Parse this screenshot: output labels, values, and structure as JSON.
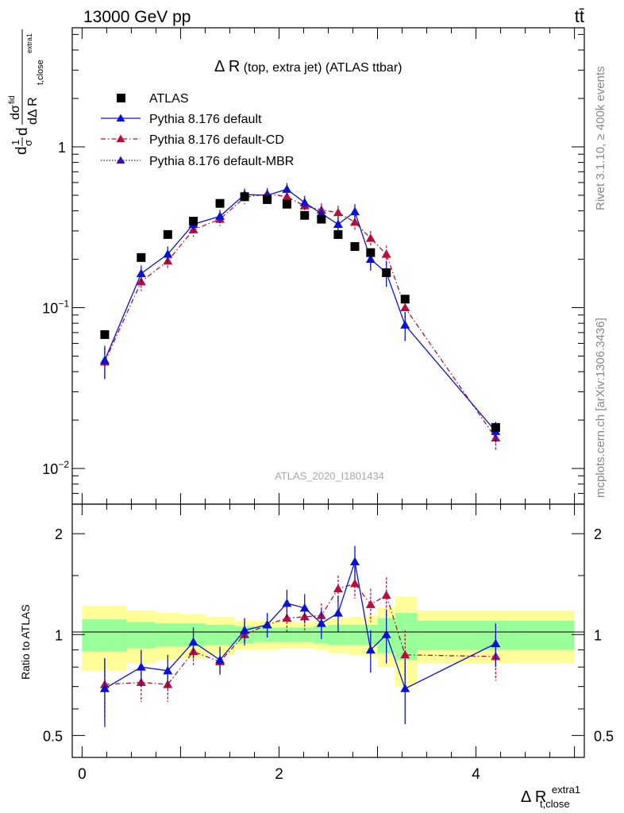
{
  "header": {
    "energy_label": "13000 GeV pp",
    "process_label": "tt̄"
  },
  "side_labels": {
    "rivet": "Rivet 3.1.10, ≥ 400k events",
    "mcplots": "mcplots.cern.ch [arXiv:1306.3436]"
  },
  "chart_data": [
    {
      "type": "scatter",
      "panel": "main",
      "title_main": "Δ R",
      "title_detail": " (top, extra jet) (ATLAS ttbar)",
      "watermark": "ATLAS_2020_I1801434",
      "ylabel_parts": {
        "d1": "d",
        "one": "1",
        "sigma": "σ",
        "d2": "d",
        "dsigma_num": "dσ",
        "fid": "fid",
        "den": "dΔ R",
        "sub": "t,close",
        "sup": "extra1"
      },
      "yscale": "log",
      "ylim": [
        0.006,
        5.5
      ],
      "xlim": [
        -0.1,
        5.1
      ],
      "ytick_labels": [
        {
          "value": 1,
          "base": "1",
          "exp": ""
        },
        {
          "value": 0.1,
          "base": "10",
          "exp": "−1"
        },
        {
          "value": 0.01,
          "base": "10",
          "exp": "−2"
        }
      ],
      "legend_position": "top-left",
      "series": [
        {
          "name": "ATLAS",
          "color": "#000000",
          "marker": "square",
          "x": [
            0.23,
            0.6,
            0.87,
            1.13,
            1.4,
            1.65,
            1.88,
            2.08,
            2.26,
            2.43,
            2.6,
            2.77,
            2.93,
            3.09,
            3.28,
            4.2
          ],
          "y": [
            0.068,
            0.205,
            0.285,
            0.345,
            0.445,
            0.49,
            0.47,
            0.44,
            0.375,
            0.355,
            0.285,
            0.24,
            0.22,
            0.165,
            0.113,
            0.018
          ],
          "yerr": [
            0.003,
            0.006,
            0.008,
            0.009,
            0.01,
            0.01,
            0.01,
            0.01,
            0.009,
            0.009,
            0.008,
            0.007,
            0.007,
            0.005,
            0.004,
            0.0008
          ]
        },
        {
          "name": "Pythia 8.176 default",
          "color": "#0a12d0",
          "line": "solid",
          "marker": "triangle",
          "x": [
            0.23,
            0.6,
            0.87,
            1.13,
            1.4,
            1.65,
            1.88,
            2.08,
            2.26,
            2.43,
            2.6,
            2.77,
            2.93,
            3.09,
            3.28,
            4.2
          ],
          "y": [
            0.047,
            0.163,
            0.215,
            0.33,
            0.37,
            0.505,
            0.5,
            0.545,
            0.45,
            0.385,
            0.33,
            0.395,
            0.2,
            0.165,
            0.078,
            0.017
          ],
          "yerr": [
            0.011,
            0.02,
            0.025,
            0.035,
            0.035,
            0.045,
            0.045,
            0.05,
            0.045,
            0.04,
            0.04,
            0.045,
            0.03,
            0.03,
            0.016,
            0.0025
          ]
        },
        {
          "name": "Pythia 8.176 default-CD",
          "color": "#b5103a",
          "line": "dashdot",
          "marker": "triangle",
          "x": [
            0.23,
            0.6,
            0.87,
            1.13,
            1.4,
            1.65,
            1.88,
            2.08,
            2.26,
            2.43,
            2.6,
            2.77,
            2.93,
            3.09,
            3.28,
            4.2
          ],
          "y": [
            0.046,
            0.145,
            0.195,
            0.305,
            0.355,
            0.485,
            0.51,
            0.49,
            0.43,
            0.405,
            0.39,
            0.34,
            0.27,
            0.215,
            0.1,
            0.0155
          ],
          "yerr": [
            0.01,
            0.018,
            0.022,
            0.03,
            0.033,
            0.045,
            0.045,
            0.045,
            0.04,
            0.04,
            0.04,
            0.035,
            0.03,
            0.028,
            0.018,
            0.0025
          ]
        },
        {
          "name": "Pythia 8.176 default-MBR",
          "color": "#3a0fb8",
          "line": "dotted",
          "marker": "triangle",
          "x": [],
          "y": []
        }
      ]
    },
    {
      "type": "scatter",
      "panel": "ratio",
      "ylabel": "Ratio to ATLAS",
      "xlabel_main": "Δ R",
      "xlabel_sub": "t,close",
      "xlabel_sup": "extra1",
      "yscale": "log",
      "ylim": [
        0.43,
        2.45
      ],
      "xlim": [
        -0.1,
        5.1
      ],
      "yticks": [
        0.5,
        1,
        2
      ],
      "ytick_labels": [
        "0.5",
        "1",
        "2"
      ],
      "xticks": [
        0,
        2,
        4
      ],
      "xtick_labels": [
        "0",
        "2",
        "4"
      ],
      "uncertainty_bands": {
        "bins": [
          0,
          0.45,
          0.75,
          1.0,
          1.25,
          1.55,
          1.75,
          2.0,
          2.15,
          2.35,
          2.5,
          2.7,
          2.85,
          3.0,
          3.18,
          3.4,
          5.0
        ],
        "yellow_half": [
          0.22,
          0.18,
          0.16,
          0.15,
          0.13,
          0.1,
          0.1,
          0.09,
          0.09,
          0.1,
          0.12,
          0.13,
          0.14,
          0.2,
          0.3,
          0.18
        ],
        "green_half": [
          0.11,
          0.09,
          0.08,
          0.08,
          0.07,
          0.06,
          0.05,
          0.05,
          0.05,
          0.06,
          0.07,
          0.07,
          0.07,
          0.12,
          0.16,
          0.1
        ]
      },
      "series": [
        {
          "name": "Pythia 8.176 default",
          "color": "#0a12d0",
          "line": "solid",
          "marker": "triangle",
          "x": [
            0.23,
            0.6,
            0.87,
            1.13,
            1.4,
            1.65,
            1.88,
            2.08,
            2.26,
            2.43,
            2.6,
            2.77,
            2.93,
            3.09,
            3.28,
            4.2
          ],
          "y": [
            0.69,
            0.8,
            0.78,
            0.95,
            0.84,
            1.03,
            1.07,
            1.24,
            1.2,
            1.08,
            1.16,
            1.65,
            0.9,
            1.0,
            0.69,
            0.94
          ],
          "yerr": [
            0.16,
            0.1,
            0.09,
            0.1,
            0.08,
            0.09,
            0.09,
            0.12,
            0.12,
            0.11,
            0.14,
            0.19,
            0.13,
            0.18,
            0.15,
            0.14
          ]
        },
        {
          "name": "Pythia 8.176 default-CD",
          "color": "#b5103a",
          "line": "dashdot",
          "marker": "triangle",
          "x": [
            0.23,
            0.6,
            0.87,
            1.13,
            1.4,
            1.65,
            1.88,
            2.08,
            2.26,
            2.43,
            2.6,
            2.77,
            2.93,
            3.09,
            3.28,
            4.2
          ],
          "y": [
            0.71,
            0.72,
            0.71,
            0.89,
            0.83,
            1.0,
            1.07,
            1.12,
            1.13,
            1.14,
            1.37,
            1.42,
            1.23,
            1.31,
            0.87,
            0.86
          ],
          "yerr": [
            0.14,
            0.09,
            0.08,
            0.08,
            0.07,
            0.08,
            0.08,
            0.1,
            0.1,
            0.1,
            0.13,
            0.14,
            0.14,
            0.17,
            0.16,
            0.13
          ]
        }
      ]
    }
  ]
}
